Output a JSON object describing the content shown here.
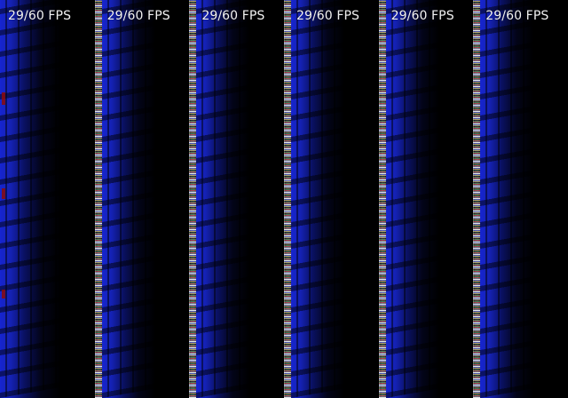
{
  "overlay": {
    "fps_text": "29/60 FPS"
  },
  "panels": [
    {
      "fps_text": "29/60 FPS"
    },
    {
      "fps_text": "29/60 FPS"
    },
    {
      "fps_text": "29/60 FPS"
    },
    {
      "fps_text": "29/60 FPS"
    },
    {
      "fps_text": "29/60 FPS"
    },
    {
      "fps_text": "29/60 FPS"
    }
  ],
  "colors": {
    "background": "#000000",
    "accent_blue": "#1827DC",
    "text": "#F2F2F2",
    "artifact_red": "#8C0A0A"
  }
}
